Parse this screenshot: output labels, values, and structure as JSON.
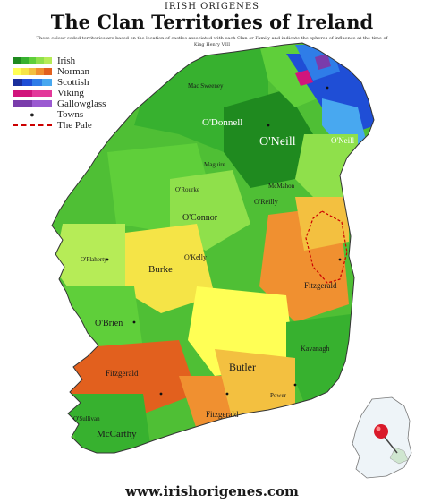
{
  "header": {
    "site_name": "IRISH ORIGENES",
    "title": "The Clan Territories of Ireland",
    "description": "These colour coded territories are based on the location of castles associated with each Clan or Family and indicate the spheres of influence at the time of King Henry VIII"
  },
  "legend": {
    "items": [
      {
        "label": "Irish",
        "colors": [
          "#1f8a1f",
          "#37b12f",
          "#5fcf3a",
          "#8fe04b",
          "#b6ec57"
        ]
      },
      {
        "label": "Norman",
        "colors": [
          "#ffff55",
          "#f5e447",
          "#f3c040",
          "#f09030",
          "#e2601e"
        ]
      },
      {
        "label": "Scottish",
        "colors": [
          "#1a2f9c",
          "#1f4ed6",
          "#2f7de8",
          "#48a8f0"
        ]
      },
      {
        "label": "Viking",
        "colors": [
          "#d1157c",
          "#e3399a"
        ]
      },
      {
        "label": "Gallowglass",
        "colors": [
          "#7a3cab",
          "#9b5ad1"
        ]
      },
      {
        "label": "Towns",
        "marker": "dot"
      },
      {
        "label": "The Pale",
        "marker": "dash"
      }
    ]
  },
  "map_labels": [
    {
      "name": "Mac Sweeney",
      "size": "small"
    },
    {
      "name": "O'Donnell",
      "size": "medium"
    },
    {
      "name": "O'Neill",
      "size": "large"
    },
    {
      "name": "O'Neill",
      "size": "medium"
    },
    {
      "name": "Maguire",
      "size": "small"
    },
    {
      "name": "McMahon",
      "size": "small"
    },
    {
      "name": "O'Reilly",
      "size": "small"
    },
    {
      "name": "O'Rourke",
      "size": "small"
    },
    {
      "name": "O'Connor",
      "size": "medium"
    },
    {
      "name": "O'Kelly",
      "size": "small"
    },
    {
      "name": "Burke",
      "size": "medium"
    },
    {
      "name": "O'Flaherty",
      "size": "small"
    },
    {
      "name": "O'Brien",
      "size": "medium"
    },
    {
      "name": "Fitzgerald",
      "size": "medium"
    },
    {
      "name": "Fitzgerald",
      "size": "medium"
    },
    {
      "name": "Fitzgerald",
      "size": "medium"
    },
    {
      "name": "Butler",
      "size": "medium"
    },
    {
      "name": "Kavanagh",
      "size": "small"
    },
    {
      "name": "McCarthy",
      "size": "medium"
    },
    {
      "name": "Power",
      "size": "small"
    },
    {
      "name": "O'Sullivan",
      "size": "small"
    }
  ],
  "colors": {
    "sea": "#ffffff",
    "irish_dark": "#1f8a1f",
    "irish_light": "#8fe04b",
    "norman_yellow": "#f5e447",
    "norman_orange": "#f09030",
    "scottish": "#1f4ed6",
    "viking": "#d1157c",
    "pale": "#cc0000"
  },
  "footer": {
    "website": "www.irishorigenes.com"
  }
}
